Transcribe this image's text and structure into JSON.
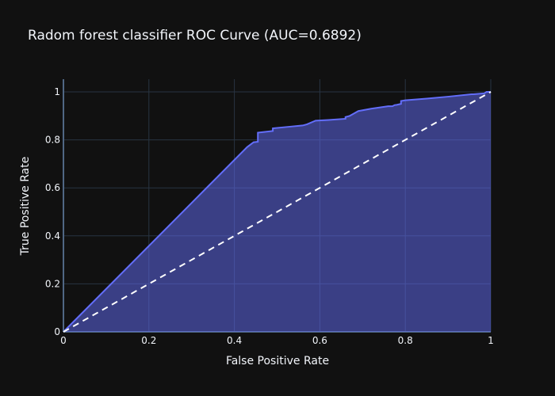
{
  "chart_data": {
    "type": "area",
    "title": "Radom forest classifier ROC Curve (AUC=0.6892)",
    "xlabel": "False Positive Rate",
    "ylabel": "True Positive Rate",
    "xlim": [
      0,
      1
    ],
    "ylim": [
      0,
      1
    ],
    "x_ticks": [
      0,
      0.2,
      0.4,
      0.6,
      0.8,
      1
    ],
    "x_tick_labels": [
      "0",
      "0.2",
      "0.4",
      "0.6",
      "0.8",
      "1"
    ],
    "y_ticks": [
      0,
      0.2,
      0.4,
      0.6,
      0.8,
      1
    ],
    "y_tick_labels": [
      "0",
      "0.2",
      "0.4",
      "0.6",
      "0.8",
      "1"
    ],
    "grid": true,
    "series": [
      {
        "kind": "filled-line",
        "color": "#636efa",
        "fill": "rgba(99,110,250,0.5)",
        "x": [
          0,
          0.43,
          0.445,
          0.455,
          0.455,
          0.49,
          0.49,
          0.53,
          0.56,
          0.57,
          0.59,
          0.62,
          0.66,
          0.66,
          0.67,
          0.68,
          0.69,
          0.72,
          0.76,
          0.77,
          0.775,
          0.78,
          0.79,
          0.79,
          0.8,
          0.85,
          0.9,
          0.955,
          0.96,
          0.985,
          0.99,
          1.0
        ],
        "y": [
          0,
          0.77,
          0.79,
          0.792,
          0.83,
          0.837,
          0.848,
          0.855,
          0.86,
          0.865,
          0.88,
          0.883,
          0.888,
          0.895,
          0.9,
          0.91,
          0.92,
          0.93,
          0.94,
          0.94,
          0.945,
          0.946,
          0.95,
          0.962,
          0.965,
          0.972,
          0.98,
          0.99,
          0.99,
          0.994,
          1.0,
          1.0
        ]
      },
      {
        "kind": "dashed-diagonal",
        "color": "#ffffff",
        "x": [
          0,
          1
        ],
        "y": [
          0,
          1
        ]
      }
    ],
    "colors": {
      "background": "#111111",
      "grid": "#283442",
      "zeroline": "#506784",
      "text": "#f2f5fa"
    }
  }
}
